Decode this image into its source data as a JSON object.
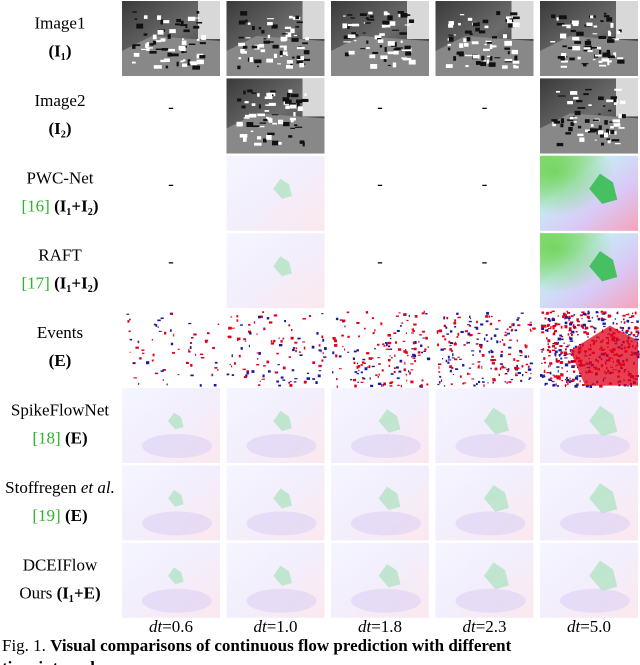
{
  "figure": {
    "rows": [
      {
        "name": "Image1",
        "inputs": "(I₁)",
        "style": "gray"
      },
      {
        "name": "Image2",
        "inputs": "(I₂)",
        "style": "gray",
        "dash": "-",
        "empty_columns": [
          0,
          2,
          3
        ]
      },
      {
        "name": "PWC-Net",
        "ref": "[16]",
        "inputs": "(I₁+I₂)",
        "style": "flow",
        "dash": "-",
        "empty_columns": [
          0,
          2,
          3
        ]
      },
      {
        "name": "RAFT",
        "ref": "[17]",
        "inputs": "(I₁+I₂)",
        "style": "flow",
        "dash": "-",
        "empty_columns": [
          0,
          2,
          3
        ]
      },
      {
        "name": "Events",
        "inputs": "(E)",
        "style": "events"
      },
      {
        "name": "SpikeFlowNet",
        "ref": "[18]",
        "inputs": "(E)",
        "style": "flow"
      },
      {
        "name": "Stoffregen",
        "name_suffix": "et al.",
        "ref": "[19]",
        "inputs": "(E)",
        "style": "flow"
      },
      {
        "name": "DCEIFlow",
        "prefix": "Ours",
        "inputs": "(I₁+E)",
        "style": "flow"
      }
    ],
    "columns": [
      {
        "symbol": "dt",
        "value": "=0.6"
      },
      {
        "symbol": "dt",
        "value": "=1.0"
      },
      {
        "symbol": "dt",
        "value": "=1.8"
      },
      {
        "symbol": "dt",
        "value": "=2.3"
      },
      {
        "symbol": "dt",
        "value": "=5.0"
      }
    ],
    "caption": {
      "label": "Fig. 1.",
      "bold": "Visual comparisons of continuous flow prediction with different",
      "line2_bold": "time intervals."
    }
  }
}
